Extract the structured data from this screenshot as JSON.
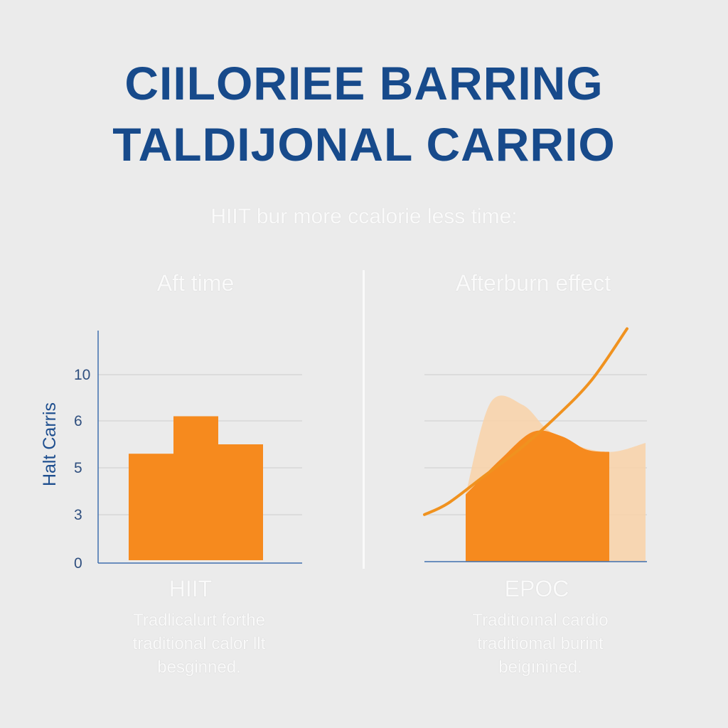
{
  "title_line1": "CIILORIEE BARRING",
  "title_line2": "TALDIJONAL CARRIO",
  "subtitle": "HIIT bur more ccalorie less time:",
  "colors": {
    "title": "#174a8b",
    "bar": "#f68a1e",
    "area_light": "#f9d2a8",
    "line": "#f0921f",
    "axis": "#3f6fae",
    "grid": "#d8d8d8"
  },
  "chart_data": [
    {
      "type": "bar",
      "panel_title": "Aft time",
      "ylabel": "Halt Carris",
      "yticks": [
        0,
        3,
        5,
        6,
        10
      ],
      "categories": [
        "",
        "",
        ""
      ],
      "values": [
        5.3,
        6.4,
        5.5
      ],
      "x_label": "HIIT",
      "caption": [
        "Tradlicalurt forthe",
        "traditional calor llt",
        "besginned."
      ]
    },
    {
      "type": "area",
      "panel_title": "Afterburn effect",
      "x_label": "EPOC",
      "caption": [
        "Traditıoınal cardio",
        "traditiomal burint",
        "beigınined."
      ],
      "series": [
        {
          "kind": "rising-line",
          "values": [
            2.1,
            2.6,
            3.8,
            5.0,
            6.4,
            8.1,
            10.4
          ]
        },
        {
          "kind": "light-area",
          "values": [
            3.0,
            7.1,
            7.0,
            5.9,
            5.2,
            4.9,
            5.3
          ]
        },
        {
          "kind": "orange-area",
          "values": [
            3.0,
            4.6,
            5.8,
            5.6,
            5.0,
            4.9
          ]
        }
      ]
    }
  ]
}
